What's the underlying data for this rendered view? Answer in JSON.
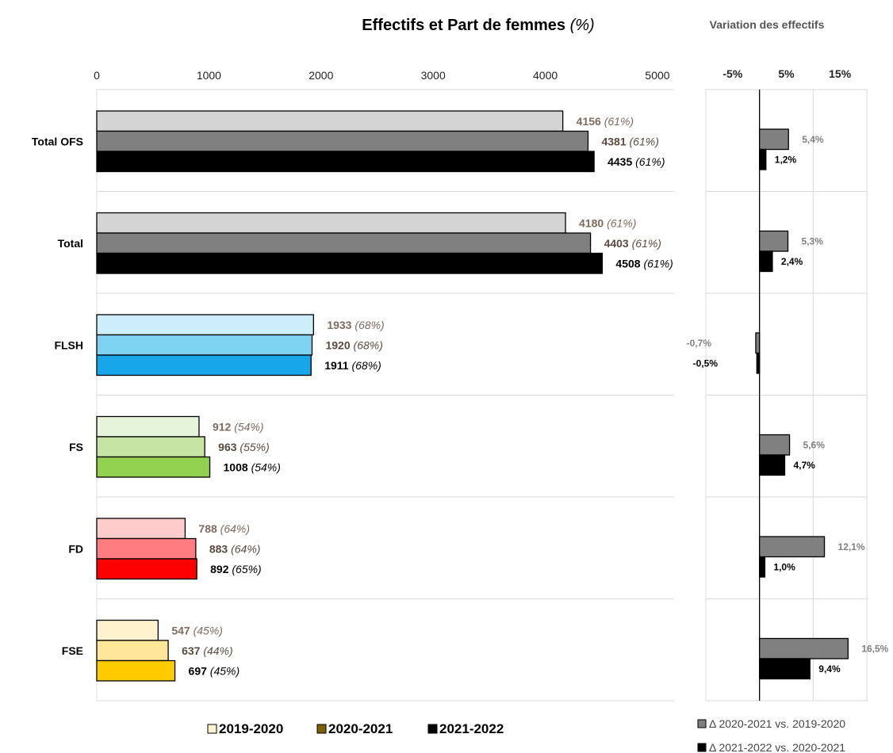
{
  "chart_data": [
    {
      "type": "bar",
      "orientation": "horizontal",
      "title": "Effectifs et Part de femmes",
      "title_unit": "(%)",
      "xlim": [
        0,
        5000
      ],
      "xticks": [
        "0",
        "1000",
        "2000",
        "3000",
        "4000",
        "5000"
      ],
      "categories": [
        "Total OFS",
        "Total",
        "FLSH",
        "FS",
        "FD",
        "FSE"
      ],
      "series": [
        {
          "name": "2019-2020",
          "values": [
            4156,
            4180,
            1933,
            912,
            788,
            547
          ],
          "women_share": [
            "(61%)",
            "(61%)",
            "(68%)",
            "(54%)",
            "(64%)",
            "(45%)"
          ]
        },
        {
          "name": "2020-2021",
          "values": [
            4381,
            4403,
            1920,
            963,
            883,
            637
          ],
          "women_share": [
            "(61%)",
            "(61%)",
            "(68%)",
            "(55%)",
            "(64%)",
            "(44%)"
          ]
        },
        {
          "name": "2021-2022",
          "values": [
            4435,
            4508,
            1911,
            1008,
            892,
            697
          ],
          "women_share": [
            "(61%)",
            "(61%)",
            "(68%)",
            "(54%)",
            "(65%)",
            "(45%)"
          ]
        }
      ],
      "category_colors": [
        [
          "#d4d4d4",
          "#808080",
          "#000000"
        ],
        [
          "#d4d4d4",
          "#808080",
          "#000000"
        ],
        [
          "#cceefa",
          "#7fd3f2",
          "#17a6e8"
        ],
        [
          "#e6f4dc",
          "#c6e5a5",
          "#92d050"
        ],
        [
          "#ffcccc",
          "#ff7c80",
          "#ff0000"
        ],
        [
          "#fff2cc",
          "#ffe699",
          "#ffcc00"
        ]
      ],
      "legend": {
        "position": "bottom",
        "entries": [
          "2019-2020",
          "2020-2021",
          "2021-2022"
        ],
        "colors": [
          "#fff2cc",
          "#7f6000",
          "#000000"
        ]
      },
      "grid": "horizontal separators between categories"
    },
    {
      "type": "bar",
      "orientation": "horizontal",
      "title": "Variation des effectifs",
      "xlim": [
        -10,
        20
      ],
      "xticks": [
        -5,
        5,
        15
      ],
      "xtick_labels": [
        "-5%",
        "5%",
        "15%"
      ],
      "categories": [
        "Total OFS",
        "Total",
        "FLSH",
        "FS",
        "FD",
        "FSE"
      ],
      "series": [
        {
          "name": "Δ 2020-2021 vs. 2019-2020",
          "values": [
            5.4,
            5.3,
            -0.7,
            5.6,
            12.1,
            16.5
          ],
          "labels": [
            "5,4%",
            "5,3%",
            "-0,7%",
            "5,6%",
            "12,1%",
            "16,5%"
          ],
          "color": "#808080"
        },
        {
          "name": "Δ 2021-2022 vs. 2020-2021",
          "values": [
            1.2,
            2.4,
            -0.5,
            4.7,
            1.0,
            9.4
          ],
          "labels": [
            "1,2%",
            "2,4%",
            "-0,5%",
            "4,7%",
            "1,0%",
            "9,4%"
          ],
          "color": "#000000"
        }
      ],
      "legend": {
        "position": "bottom"
      },
      "grid": "vertical gridlines"
    }
  ]
}
